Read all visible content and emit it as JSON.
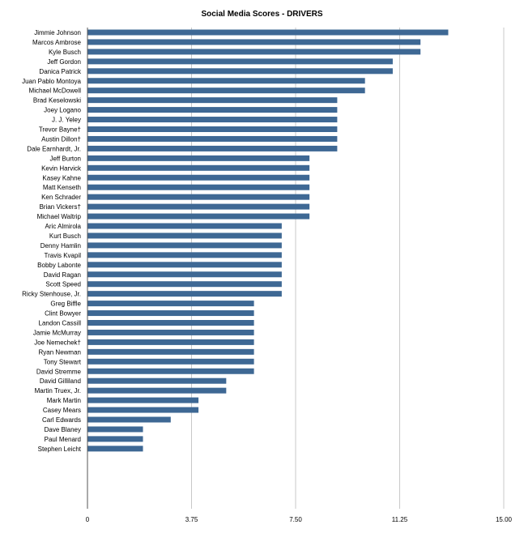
{
  "chart_data": {
    "type": "bar",
    "orientation": "horizontal",
    "title": "Social Media Scores - DRIVERS",
    "xlabel": "",
    "ylabel": "",
    "xlim": [
      0,
      15
    ],
    "x_ticks": [
      "0",
      "3.75",
      "7.50",
      "11.25",
      "15.00"
    ],
    "grid": true,
    "bar_color": "#3e6894",
    "grid_color": "#c8c8c8",
    "categories": [
      "Jimmie Johnson",
      "Marcos Ambrose",
      "Kyle Busch",
      "Jeff Gordon",
      "Danica Patrick",
      "Juan Pablo Montoya",
      "Michael McDowell",
      "Brad Keselowski",
      "Joey Logano",
      "J. J. Yeley",
      "Trevor Bayne†",
      "Austin Dillon†",
      "Dale Earnhardt, Jr.",
      "Jeff Burton",
      "Kevin Harvick",
      "Kasey Kahne",
      "Matt Kenseth",
      "Ken Schrader",
      "Brian Vickers†",
      "Michael Waltrip",
      "Aric Almirola",
      "Kurt Busch",
      "Denny Hamlin",
      "Travis Kvapil",
      "Bobby Labonte",
      "David Ragan",
      "Scott Speed",
      "Ricky Stenhouse, Jr.",
      "Greg Biffle",
      "Clint Bowyer",
      "Landon Cassill",
      "Jamie McMurray",
      "Joe Nemechek†",
      "Ryan Newman",
      "Tony Stewart",
      "David Stremme",
      "David Gilliland",
      "Martin Truex, Jr.",
      "Mark Martin",
      "Casey Mears",
      "Carl Edwards",
      "Dave Blaney",
      "Paul Menard",
      "Stephen Leicht"
    ],
    "values": [
      13,
      12,
      12,
      11,
      11,
      10,
      10,
      9,
      9,
      9,
      9,
      9,
      9,
      8,
      8,
      8,
      8,
      8,
      8,
      8,
      7,
      7,
      7,
      7,
      7,
      7,
      7,
      7,
      6,
      6,
      6,
      6,
      6,
      6,
      6,
      6,
      5,
      5,
      4,
      4,
      3,
      2,
      2,
      2
    ]
  }
}
